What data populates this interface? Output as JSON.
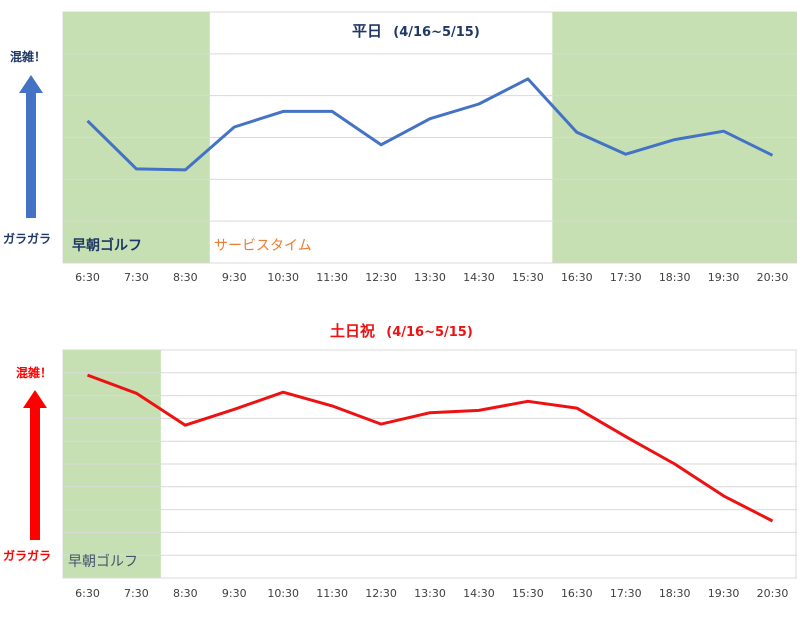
{
  "colors": {
    "panel_fill": "#c6e0b4",
    "grid": "#d9d9d9",
    "weekday_line": "#4472c4",
    "weekday_title": "#1f3864",
    "weekday_arrow": "#4472c4",
    "weekday_axis_text": "#1f3864",
    "service_text": "#ed7d31",
    "weekend_line": "#ee1111",
    "weekend_title": "#ee1111",
    "weekend_arrow": "#ff0000",
    "weekend_axis_text": "#ff0000",
    "weekend_zone_text": "#44546a"
  },
  "chart_data": [
    {
      "type": "line",
      "title": "平日",
      "subtitle": "(4/16~5/15)",
      "categories": [
        "6:30",
        "7:30",
        "8:30",
        "9:30",
        "10:30",
        "11:30",
        "12:30",
        "13:30",
        "14:30",
        "15:30",
        "16:30",
        "17:30",
        "18:30",
        "19:30",
        "20:30"
      ],
      "series": [
        {
          "values": [
            68,
            45,
            44.5,
            65,
            72.5,
            72.5,
            56.5,
            69,
            76,
            88,
            62.5,
            52,
            59,
            63,
            51.5
          ]
        }
      ],
      "ylim": [
        0,
        120
      ],
      "y_grid_step": 20,
      "y_axis_top_label": "混雑！",
      "y_axis_bottom_label": "ガラガラ",
      "shaded_ranges": [
        {
          "from": 0,
          "to": 2,
          "label": "早朝ゴルフ"
        },
        {
          "from": 10,
          "to": 14,
          "label": ""
        }
      ],
      "annotations": [
        {
          "text": "サービスタイム"
        }
      ],
      "grid": true,
      "legend": "none"
    },
    {
      "type": "line",
      "title": "土日祝",
      "subtitle": "(4/16~5/15)",
      "categories": [
        "6:30",
        "7:30",
        "8:30",
        "9:30",
        "10:30",
        "11:30",
        "12:30",
        "13:30",
        "14:30",
        "15:30",
        "16:30",
        "17:30",
        "18:30",
        "19:30",
        "20:30"
      ],
      "series": [
        {
          "values": [
            178,
            162,
            134,
            148,
            163,
            151,
            135,
            145,
            147,
            155,
            149,
            124,
            100,
            72,
            50
          ]
        }
      ],
      "ylim": [
        0,
        200
      ],
      "y_grid_step": 20,
      "y_axis_top_label": "混雑！",
      "y_axis_bottom_label": "ガラガラ",
      "shaded_ranges": [
        {
          "from": 0,
          "to": 1,
          "label": "早朝ゴルフ"
        }
      ],
      "grid": true,
      "legend": "none"
    }
  ]
}
